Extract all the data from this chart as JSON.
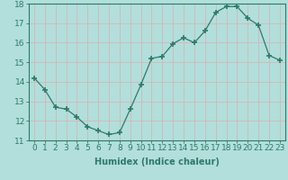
{
  "x": [
    0,
    1,
    2,
    3,
    4,
    5,
    6,
    7,
    8,
    9,
    10,
    11,
    12,
    13,
    14,
    15,
    16,
    17,
    18,
    19,
    20,
    21,
    22,
    23
  ],
  "y": [
    14.2,
    13.6,
    12.7,
    12.6,
    12.2,
    11.7,
    11.5,
    11.3,
    11.4,
    12.6,
    13.85,
    15.2,
    15.3,
    15.95,
    16.25,
    16.0,
    16.6,
    17.55,
    17.85,
    17.85,
    17.25,
    16.9,
    15.35,
    15.1
  ],
  "line_color": "#2d7a6a",
  "marker": "+",
  "marker_size": 4,
  "bg_color": "#b2dfdb",
  "grid_color": "#d0b8b8",
  "xlabel": "Humidex (Indice chaleur)",
  "ylim": [
    11,
    18
  ],
  "xlim": [
    -0.5,
    23.5
  ],
  "yticks": [
    11,
    12,
    13,
    14,
    15,
    16,
    17,
    18
  ],
  "xticks": [
    0,
    1,
    2,
    3,
    4,
    5,
    6,
    7,
    8,
    9,
    10,
    11,
    12,
    13,
    14,
    15,
    16,
    17,
    18,
    19,
    20,
    21,
    22,
    23
  ],
  "xlabel_fontsize": 7,
  "tick_fontsize": 6.5
}
